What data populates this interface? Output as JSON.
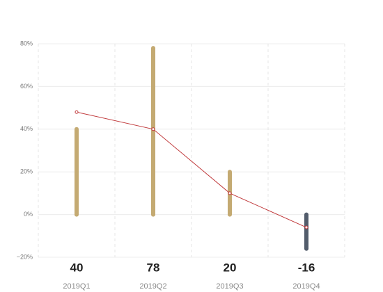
{
  "chart_data": {
    "type": "bar",
    "categories": [
      "2019Q1",
      "2019Q2",
      "2019Q3",
      "2019Q4"
    ],
    "series": [
      {
        "type": "bar",
        "color": "#c4aa72",
        "negative_color": "#525c6b",
        "values": [
          40,
          78,
          20,
          -16
        ]
      },
      {
        "type": "line",
        "color": "#c0393b",
        "values": [
          48,
          40,
          10,
          -6
        ]
      }
    ],
    "ylim": [
      -20,
      80
    ],
    "yticks": [
      {
        "value": -20,
        "label": "−20%"
      },
      {
        "value": 0,
        "label": "0%"
      },
      {
        "value": 20,
        "label": "20%"
      },
      {
        "value": 40,
        "label": "40%"
      },
      {
        "value": 60,
        "label": "60%"
      },
      {
        "value": 80,
        "label": "80%"
      }
    ],
    "grid": true
  }
}
